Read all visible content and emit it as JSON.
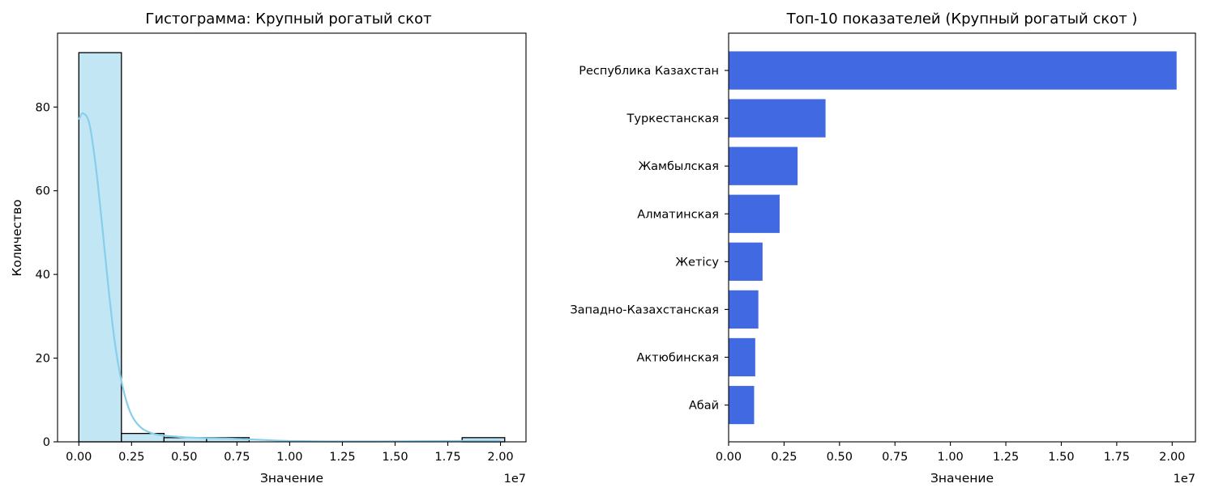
{
  "chart_data": [
    {
      "type": "bar",
      "subtype": "histogram",
      "title": "Гистограмма: Крупный рогатый скот",
      "xlabel": "Значение",
      "ylabel": "Количество",
      "x_offset_label": "1e7",
      "xlim": [
        -1010000,
        21210000
      ],
      "ylim": [
        0,
        97.65
      ],
      "xticks": [
        0,
        2500000,
        5000000,
        7500000,
        10000000,
        12500000,
        15000000,
        17500000,
        20000000
      ],
      "xtick_labels": [
        "0.00",
        "0.25",
        "0.50",
        "0.75",
        "1.00",
        "1.25",
        "1.50",
        "1.75",
        "2.00"
      ],
      "yticks": [
        0,
        20,
        40,
        60,
        80
      ],
      "ytick_labels": [
        "0",
        "20",
        "40",
        "60",
        "80"
      ],
      "bins": [
        {
          "x0": 0,
          "x1": 2020000,
          "count": 93
        },
        {
          "x0": 2020000,
          "x1": 4040000,
          "count": 2
        },
        {
          "x0": 4040000,
          "x1": 6060000,
          "count": 1
        },
        {
          "x0": 6060000,
          "x1": 8080000,
          "count": 1
        },
        {
          "x0": 8080000,
          "x1": 10100000,
          "count": 0
        },
        {
          "x0": 10100000,
          "x1": 12120000,
          "count": 0
        },
        {
          "x0": 12120000,
          "x1": 14140000,
          "count": 0
        },
        {
          "x0": 14140000,
          "x1": 16160000,
          "count": 0
        },
        {
          "x0": 16160000,
          "x1": 18180000,
          "count": 0
        },
        {
          "x0": 18180000,
          "x1": 20200000,
          "count": 1
        }
      ],
      "kde": {
        "x": [
          0,
          200000,
          500000,
          800000,
          1100000,
          1400000,
          1700000,
          2000000,
          2300000,
          2600000,
          3000000,
          3500000,
          4000000,
          5000000,
          6000000,
          7000000,
          8000000,
          9000000,
          10000000,
          12000000,
          14000000,
          16000000,
          18000000,
          20000000
        ],
        "y": [
          77,
          78.5,
          76,
          66,
          52,
          37,
          24,
          15,
          9,
          5.5,
          3.2,
          2,
          1.5,
          1.1,
          0.9,
          0.8,
          0.6,
          0.4,
          0.2,
          0.1,
          0.1,
          0.15,
          0.2,
          0.25
        ]
      },
      "colors": {
        "bar_fill": "#c3e6f5",
        "bar_edge": "#000000",
        "kde_line": "#87ceeb"
      },
      "grid": false
    },
    {
      "type": "bar",
      "orientation": "horizontal",
      "title": "Топ-10 показателей (Крупный рогатый скот )",
      "xlabel": "Значение",
      "x_offset_label": "1e7",
      "xlim": [
        0,
        21050000
      ],
      "xticks": [
        0,
        2500000,
        5000000,
        7500000,
        10000000,
        12500000,
        15000000,
        17500000,
        20000000
      ],
      "xtick_labels": [
        "0.00",
        "0.25",
        "0.50",
        "0.75",
        "1.00",
        "1.25",
        "1.50",
        "1.75",
        "2.00"
      ],
      "categories": [
        "Республика Казахстан",
        "Туркестанская",
        "Жамбылская",
        "Алматинская",
        "Жетісу",
        "Западно-Казахстанская",
        "Актюбинская",
        "Абай"
      ],
      "values": [
        20200000,
        4370000,
        3110000,
        2300000,
        1530000,
        1340000,
        1200000,
        1150000
      ],
      "colors": {
        "bar_fill": "#4169e1"
      },
      "grid": false
    }
  ]
}
